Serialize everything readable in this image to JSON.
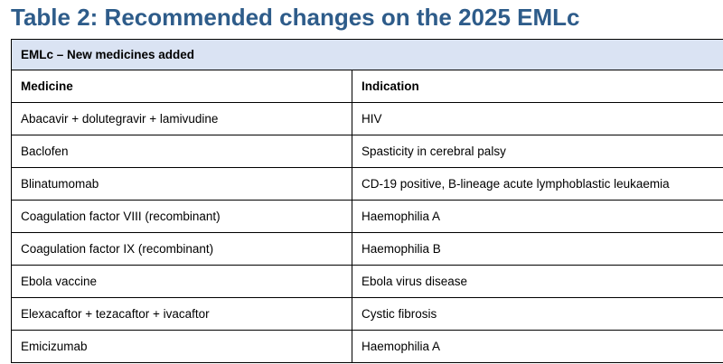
{
  "document": {
    "title": "Table 2: Recommended changes on the 2025 EMLc"
  },
  "table": {
    "section_label": "EMLc – New medicines added",
    "columns": [
      "Medicine",
      "Indication"
    ],
    "rows": [
      [
        "Abacavir + dolutegravir + lamivudine",
        "HIV"
      ],
      [
        "Baclofen",
        "Spasticity in cerebral palsy"
      ],
      [
        "Blinatumomab",
        "CD-19 positive, B-lineage acute lymphoblastic leukaemia"
      ],
      [
        "Coagulation factor VIII (recombinant)",
        "Haemophilia A"
      ],
      [
        "Coagulation factor IX (recombinant)",
        "Haemophilia B"
      ],
      [
        "Ebola vaccine",
        "Ebola virus disease"
      ],
      [
        "Elexacaftor + tezacaftor + ivacaftor",
        "Cystic fibrosis"
      ],
      [
        "Emicizumab",
        "Haemophilia A"
      ]
    ]
  },
  "colors": {
    "title": "#2e5c8a",
    "section_background": "#dae3f3",
    "border": "#000000"
  }
}
